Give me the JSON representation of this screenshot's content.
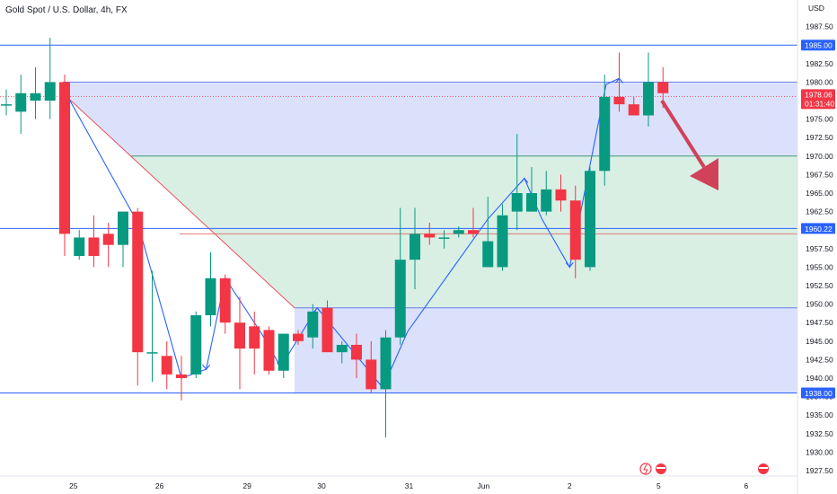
{
  "title": "Gold Spot / U.S. Dollar, 4h, FX",
  "currency": "USD",
  "chart_data": {
    "type": "candlestick",
    "title": "Gold Spot / U.S. Dollar, 4h, FX",
    "ylim": [
      1926,
      2001
    ],
    "y_ticks": [
      "1927.50",
      "1930.00",
      "1932.50",
      "1935.00",
      "1937.50",
      "1940.00",
      "1942.50",
      "1945.00",
      "1947.50",
      "1950.00",
      "1952.50",
      "1955.00",
      "1957.50",
      "1960.00",
      "1962.50",
      "1965.00",
      "1967.50",
      "1970.00",
      "1972.50",
      "1975.00",
      "1977.50",
      "1980.00",
      "1982.50",
      "1985.00",
      "1987.50"
    ],
    "x_ticks": [
      {
        "label": "25",
        "bar": 4.6
      },
      {
        "label": "26",
        "bar": 10.5
      },
      {
        "label": "29",
        "bar": 16.5
      },
      {
        "label": "30",
        "bar": 21.6
      },
      {
        "label": "31",
        "bar": 27.6
      },
      {
        "label": "Jun",
        "bar": 32.7
      },
      {
        "label": "2",
        "bar": 38.6
      },
      {
        "label": "5",
        "bar": 44.7
      },
      {
        "label": "6",
        "bar": 50.7
      }
    ],
    "candles": [
      {
        "o": 1977,
        "h": 1979,
        "l": 1975.5,
        "c": 1977
      },
      {
        "o": 1976,
        "h": 1981,
        "l": 1973,
        "c": 1978.5
      },
      {
        "o": 1977.5,
        "h": 1982,
        "l": 1975,
        "c": 1978.5
      },
      {
        "o": 1977.5,
        "h": 1986,
        "l": 1975,
        "c": 1980
      },
      {
        "o": 1980,
        "h": 1981,
        "l": 1956.5,
        "c": 1959.5
      },
      {
        "o": 1956.5,
        "h": 1960,
        "l": 1956,
        "c": 1959
      },
      {
        "o": 1959,
        "h": 1962,
        "l": 1955,
        "c": 1956.5
      },
      {
        "o": 1959.5,
        "h": 1961,
        "l": 1955,
        "c": 1958
      },
      {
        "o": 1958,
        "h": 1962.5,
        "l": 1955,
        "c": 1962.5
      },
      {
        "o": 1962.5,
        "h": 1963,
        "l": 1939,
        "c": 1943.5
      },
      {
        "o": 1943.5,
        "h": 1954.5,
        "l": 1939.5,
        "c": 1943.5
      },
      {
        "o": 1943,
        "h": 1945,
        "l": 1938.5,
        "c": 1940.5
      },
      {
        "o": 1940.5,
        "h": 1943,
        "l": 1937,
        "c": 1940
      },
      {
        "o": 1940.5,
        "h": 1949,
        "l": 1940,
        "c": 1948.5
      },
      {
        "o": 1948.5,
        "h": 1957,
        "l": 1947,
        "c": 1953.5
      },
      {
        "o": 1953.5,
        "h": 1954,
        "l": 1946,
        "c": 1947.5
      },
      {
        "o": 1947.5,
        "h": 1951,
        "l": 1938.5,
        "c": 1944
      },
      {
        "o": 1947,
        "h": 1949,
        "l": 1940.5,
        "c": 1944
      },
      {
        "o": 1946.5,
        "h": 1947,
        "l": 1940.5,
        "c": 1941
      },
      {
        "o": 1941,
        "h": 1946,
        "l": 1940,
        "c": 1946
      },
      {
        "o": 1946,
        "h": 1946.5,
        "l": 1944.5,
        "c": 1945
      },
      {
        "o": 1945.5,
        "h": 1950,
        "l": 1944,
        "c": 1949
      },
      {
        "o": 1949.5,
        "h": 1950.5,
        "l": 1943.5,
        "c": 1943.5
      },
      {
        "o": 1943.5,
        "h": 1945,
        "l": 1942,
        "c": 1944.5
      },
      {
        "o": 1944.5,
        "h": 1946,
        "l": 1940,
        "c": 1942.5
      },
      {
        "o": 1942.5,
        "h": 1945,
        "l": 1938,
        "c": 1938.5
      },
      {
        "o": 1938.5,
        "h": 1946.5,
        "l": 1932,
        "c": 1945.5
      },
      {
        "o": 1945.5,
        "h": 1963,
        "l": 1944.5,
        "c": 1956
      },
      {
        "o": 1956,
        "h": 1963,
        "l": 1952,
        "c": 1959.5
      },
      {
        "o": 1959.5,
        "h": 1961,
        "l": 1958,
        "c": 1959
      },
      {
        "o": 1959,
        "h": 1960,
        "l": 1957.5,
        "c": 1959
      },
      {
        "o": 1959.5,
        "h": 1960.5,
        "l": 1959,
        "c": 1960
      },
      {
        "o": 1960,
        "h": 1963,
        "l": 1959,
        "c": 1959.5
      },
      {
        "o": 1955,
        "h": 1964.5,
        "l": 1955,
        "c": 1958.5
      },
      {
        "o": 1955,
        "h": 1963.5,
        "l": 1954.5,
        "c": 1962
      },
      {
        "o": 1962.5,
        "h": 1973,
        "l": 1960,
        "c": 1965
      },
      {
        "o": 1962.5,
        "h": 1968.5,
        "l": 1962.5,
        "c": 1965
      },
      {
        "o": 1962.5,
        "h": 1968,
        "l": 1962,
        "c": 1965.5
      },
      {
        "o": 1965.5,
        "h": 1967.5,
        "l": 1962.5,
        "c": 1964
      },
      {
        "o": 1964,
        "h": 1966,
        "l": 1953.5,
        "c": 1956
      },
      {
        "o": 1955,
        "h": 1968.5,
        "l": 1954.5,
        "c": 1968
      },
      {
        "o": 1968,
        "h": 1981,
        "l": 1966,
        "c": 1978
      },
      {
        "o": 1978,
        "h": 1984,
        "l": 1976,
        "c": 1977
      },
      {
        "o": 1977,
        "h": 1978,
        "l": 1975.5,
        "c": 1975.5
      },
      {
        "o": 1975.5,
        "h": 1984,
        "l": 1974,
        "c": 1980
      },
      {
        "o": 1980,
        "h": 1982,
        "l": 1976.5,
        "c": 1978.5
      }
    ],
    "zones": [
      {
        "from": 1960.22,
        "to": 1980,
        "color": "#c4cdf6",
        "fill": "#dbe1fb"
      },
      {
        "from": 1949.5,
        "to": 1970,
        "color": "#d8eee4",
        "fill": "#d9efe4"
      },
      {
        "from": 1938,
        "to": 1949.5,
        "color": "#dbe1fb",
        "fill": "#dbe1fb"
      }
    ],
    "levels": [
      {
        "value": 1985.0,
        "label": "1985.00"
      },
      {
        "value": 1960.22,
        "label": "1960.22"
      },
      {
        "value": 1938.0,
        "label": "1938.00"
      }
    ],
    "current_price": {
      "value": 1978.06,
      "label": "1978.06",
      "countdown": "01:31:40"
    },
    "colors": {
      "up": "#089981",
      "down": "#f23645",
      "line": "#2962ff",
      "accent": "#d0415a"
    }
  }
}
